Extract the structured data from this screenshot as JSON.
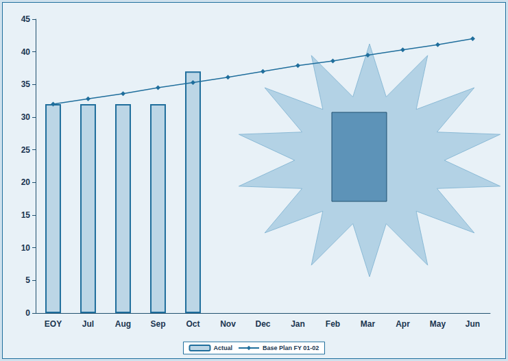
{
  "chart_data": {
    "type": "bar",
    "categories": [
      "EOY",
      "Jul",
      "Aug",
      "Sep",
      "Oct",
      "Nov",
      "Dec",
      "Jan",
      "Feb",
      "Mar",
      "Apr",
      "May",
      "Jun"
    ],
    "series": [
      {
        "name": "Actual",
        "type": "bar",
        "color": "#bcd6e6",
        "values": [
          32,
          32,
          32,
          32,
          37,
          null,
          null,
          null,
          null,
          null,
          null,
          null,
          null
        ]
      },
      {
        "name": "Base Plan FY 01-02",
        "type": "line",
        "color": "#1f6e9c",
        "marker": "diamond",
        "values": [
          32,
          32.8,
          33.6,
          34.5,
          35.3,
          36.1,
          37,
          37.9,
          38.6,
          39.5,
          40.3,
          41.1,
          42
        ]
      }
    ],
    "ylim": [
      0,
      45
    ],
    "yticks": [
      0,
      5,
      10,
      15,
      20,
      25,
      30,
      35,
      40,
      45
    ],
    "grid": false,
    "legend": "bottom"
  }
}
